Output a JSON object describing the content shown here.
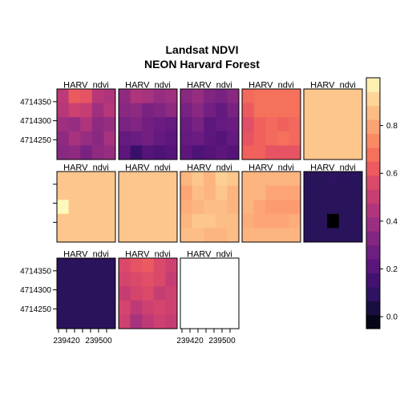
{
  "chart_data": {
    "type": "heatmap",
    "title": "Landsat NDVI",
    "subtitle": "NEON Harvard Forest",
    "panel_label": "HARV_ndvi",
    "layout": {
      "columns": 5,
      "rows": 3,
      "panels_shown": 13
    },
    "x_tick_labels": [
      "239420",
      "239500"
    ],
    "y_tick_labels": [
      "4714350",
      "4714300",
      "4714250"
    ],
    "colorbar": {
      "range": [
        -0.05,
        1.0
      ],
      "ticks": [
        0.0,
        0.2,
        0.4,
        0.6,
        0.8
      ],
      "tick_labels": [
        "0.0",
        "0.2",
        "0.4",
        "0.6",
        "0.8"
      ],
      "colors": [
        "#000004",
        "#0f0a2e",
        "#271359",
        "#3d0f6e",
        "#551479",
        "#6a1c81",
        "#802582",
        "#982d80",
        "#b1357b",
        "#c83e73",
        "#dd4a69",
        "#ee5d5d",
        "#f7765c",
        "#fb9167",
        "#fdab78",
        "#fdc48c",
        "#fde2a1",
        "#fcfdbf"
      ]
    },
    "panels": [
      {
        "name": "HARV_ndvi 1",
        "values": [
          [
            0.48,
            0.62,
            0.6,
            0.46,
            0.44
          ],
          [
            0.46,
            0.52,
            0.5,
            0.4,
            0.46
          ],
          [
            0.4,
            0.38,
            0.44,
            0.36,
            0.38
          ],
          [
            0.36,
            0.42,
            0.38,
            0.34,
            0.42
          ],
          [
            0.34,
            0.36,
            0.3,
            0.36,
            0.38
          ]
        ]
      },
      {
        "name": "HARV_ndvi 2",
        "values": [
          [
            0.36,
            0.44,
            0.42,
            0.38,
            0.4
          ],
          [
            0.34,
            0.36,
            0.3,
            0.32,
            0.36
          ],
          [
            0.3,
            0.32,
            0.28,
            0.26,
            0.24
          ],
          [
            0.24,
            0.26,
            0.28,
            0.24,
            0.22
          ],
          [
            0.22,
            0.12,
            0.2,
            0.18,
            0.2
          ]
        ]
      },
      {
        "name": "HARV_ndvi 3",
        "values": [
          [
            0.34,
            0.38,
            0.32,
            0.3,
            0.34
          ],
          [
            0.3,
            0.34,
            0.28,
            0.24,
            0.3
          ],
          [
            0.26,
            0.3,
            0.22,
            0.24,
            0.26
          ],
          [
            0.24,
            0.26,
            0.22,
            0.2,
            0.24
          ],
          [
            0.22,
            0.18,
            0.2,
            0.22,
            0.2
          ]
        ]
      },
      {
        "name": "HARV_ndvi 4",
        "values": [
          [
            0.66,
            0.68,
            0.68,
            0.68,
            0.68
          ],
          [
            0.62,
            0.68,
            0.68,
            0.68,
            0.68
          ],
          [
            0.58,
            0.64,
            0.66,
            0.64,
            0.66
          ],
          [
            0.6,
            0.64,
            0.66,
            0.68,
            0.66
          ],
          [
            0.64,
            0.64,
            0.6,
            0.6,
            0.6
          ]
        ]
      },
      {
        "name": "HARV_ndvi 5",
        "values": [
          [
            0.88,
            0.88,
            0.88,
            0.88,
            0.88
          ],
          [
            0.88,
            0.88,
            0.88,
            0.88,
            0.88
          ],
          [
            0.88,
            0.88,
            0.88,
            0.88,
            0.88
          ],
          [
            0.88,
            0.88,
            0.88,
            0.88,
            0.88
          ],
          [
            0.88,
            0.88,
            0.88,
            0.88,
            0.88
          ]
        ]
      },
      {
        "name": "HARV_ndvi 6",
        "values": [
          [
            0.88,
            0.88,
            0.88,
            0.88,
            0.88
          ],
          [
            0.88,
            0.88,
            0.88,
            0.88,
            0.88
          ],
          [
            0.99,
            0.88,
            0.88,
            0.88,
            0.88
          ],
          [
            0.88,
            0.88,
            0.88,
            0.88,
            0.88
          ],
          [
            0.88,
            0.88,
            0.88,
            0.88,
            0.88
          ]
        ]
      },
      {
        "name": "HARV_ndvi 7",
        "values": [
          [
            0.88,
            0.88,
            0.88,
            0.88,
            0.88
          ],
          [
            0.88,
            0.88,
            0.88,
            0.88,
            0.88
          ],
          [
            0.88,
            0.88,
            0.88,
            0.88,
            0.88
          ],
          [
            0.88,
            0.88,
            0.88,
            0.88,
            0.88
          ],
          [
            0.88,
            0.88,
            0.88,
            0.88,
            0.88
          ]
        ]
      },
      {
        "name": "HARV_ndvi 8",
        "values": [
          [
            0.84,
            0.88,
            0.84,
            0.9,
            0.88
          ],
          [
            0.8,
            0.86,
            0.84,
            0.88,
            0.84
          ],
          [
            0.82,
            0.84,
            0.86,
            0.86,
            0.84
          ],
          [
            0.84,
            0.88,
            0.88,
            0.86,
            0.86
          ],
          [
            0.86,
            0.86,
            0.84,
            0.84,
            0.86
          ]
        ]
      },
      {
        "name": "HARV_ndvi 9",
        "values": [
          [
            0.84,
            0.84,
            0.84,
            0.84,
            0.84
          ],
          [
            0.84,
            0.84,
            0.8,
            0.8,
            0.8
          ],
          [
            0.84,
            0.8,
            0.78,
            0.78,
            0.78
          ],
          [
            0.82,
            0.8,
            0.8,
            0.8,
            0.82
          ],
          [
            0.84,
            0.84,
            0.84,
            0.84,
            0.84
          ]
        ]
      },
      {
        "name": "HARV_ndvi 10",
        "values": [
          [
            0.08,
            0.08,
            0.09,
            0.08,
            0.08
          ],
          [
            0.08,
            0.08,
            0.08,
            0.08,
            0.08
          ],
          [
            0.08,
            0.08,
            0.08,
            0.08,
            0.08
          ],
          [
            0.08,
            0.08,
            -0.05,
            0.08,
            0.08
          ],
          [
            0.08,
            0.08,
            0.08,
            0.08,
            0.08
          ]
        ]
      },
      {
        "name": "HARV_ndvi 11",
        "values": [
          [
            0.08,
            0.08,
            0.08,
            0.08,
            0.08
          ],
          [
            0.08,
            0.08,
            0.08,
            0.08,
            0.08
          ],
          [
            0.08,
            0.08,
            0.08,
            0.08,
            0.08
          ],
          [
            0.08,
            0.08,
            0.08,
            0.08,
            0.08
          ],
          [
            0.08,
            0.08,
            0.08,
            0.08,
            0.08
          ]
        ]
      },
      {
        "name": "HARV_ndvi 12",
        "values": [
          [
            0.56,
            0.6,
            0.62,
            0.56,
            0.52
          ],
          [
            0.54,
            0.56,
            0.58,
            0.56,
            0.5
          ],
          [
            0.5,
            0.54,
            0.56,
            0.5,
            0.52
          ],
          [
            0.54,
            0.48,
            0.52,
            0.54,
            0.52
          ],
          [
            0.52,
            0.42,
            0.48,
            0.52,
            0.5
          ]
        ]
      },
      {
        "name": "HARV_ndvi 13",
        "values": []
      }
    ]
  }
}
